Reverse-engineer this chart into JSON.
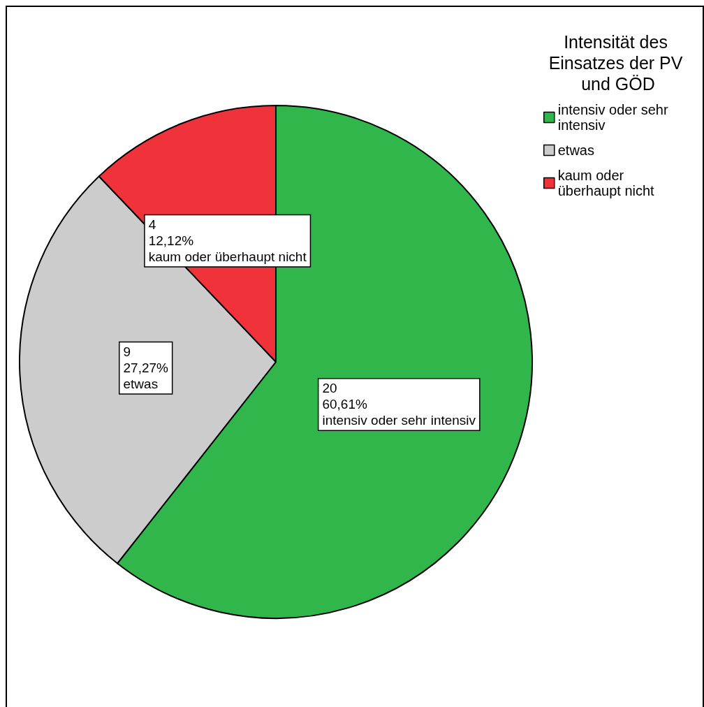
{
  "chart_data": {
    "type": "pie",
    "legend_title": "Intensität des Einsatzes der PV und GÖD",
    "categories": [
      "intensiv oder sehr intensiv",
      "etwas",
      "kaum oder überhaupt nicht"
    ],
    "values": [
      20,
      9,
      4
    ],
    "colors": [
      "#31b64b",
      "#cccccc",
      "#f0333b"
    ],
    "value_labels": [
      "20\n60,61%",
      "9\n27,27%",
      "4\n12,12%"
    ],
    "legend": "top right"
  }
}
